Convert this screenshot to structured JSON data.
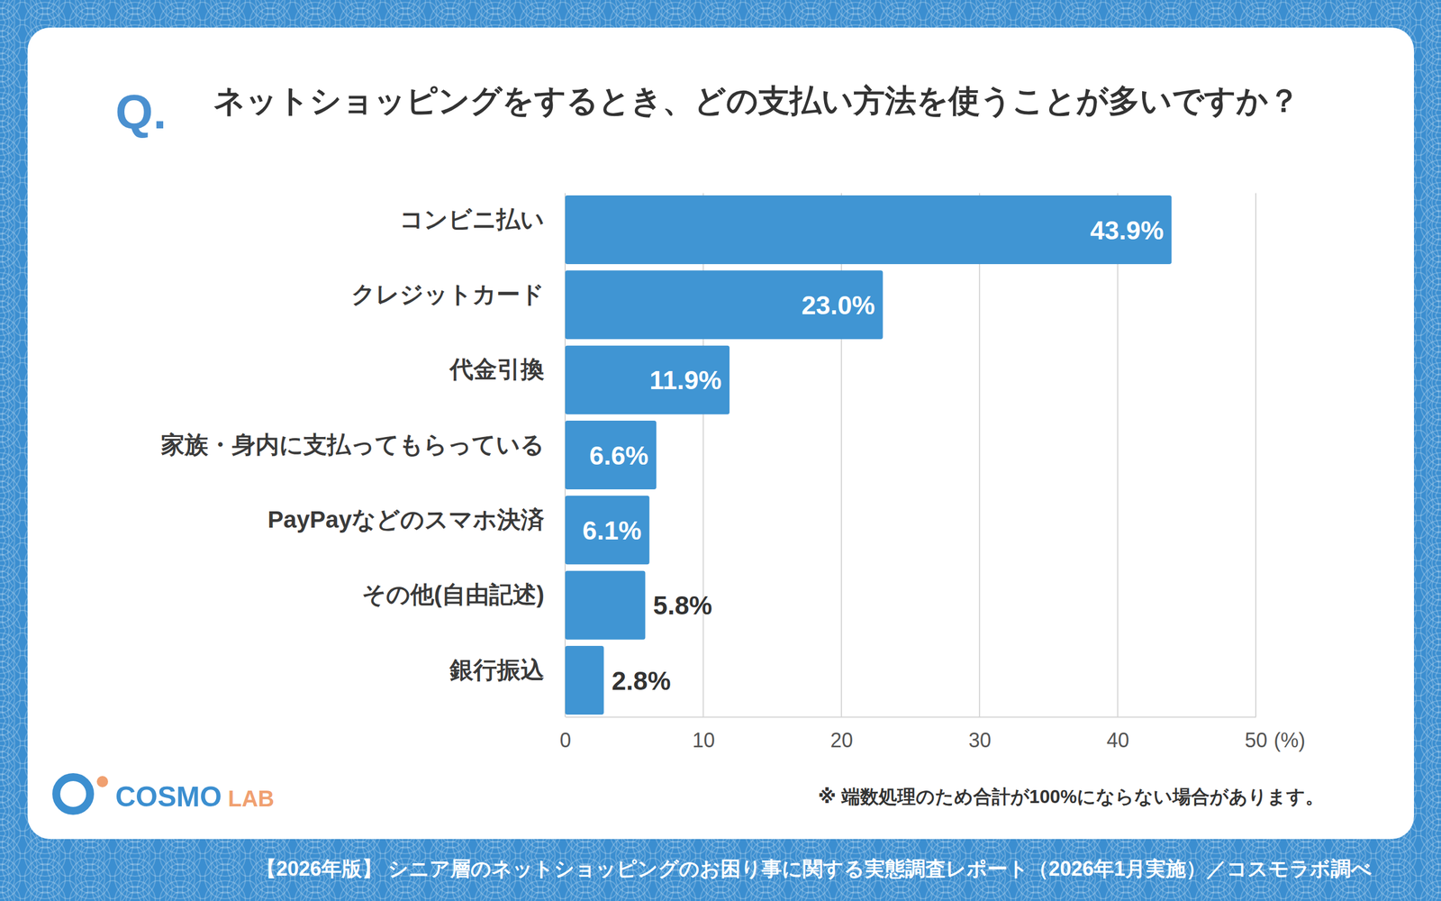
{
  "chart_data": {
    "type": "bar",
    "orientation": "horizontal",
    "title": "ネットショッピングをするとき、どの支払い方法を使うことが多いですか？",
    "categories": [
      "コンビニ払い",
      "クレジットカード",
      "代金引換",
      "家族・身内に支払ってもらっている",
      "PayPayなどのスマホ決済",
      "その他(自由記述)",
      "銀行振込"
    ],
    "values": [
      43.9,
      23.0,
      11.9,
      6.6,
      6.1,
      5.8,
      2.8
    ],
    "value_labels": [
      "43.9%",
      "23.0%",
      "11.9%",
      "6.6%",
      "6.1%",
      "5.8%",
      "2.8%"
    ],
    "data_labels": true,
    "color": "#4095d3",
    "xlim": [
      0,
      50
    ],
    "xticks": [
      0,
      10,
      20,
      30,
      40,
      50
    ],
    "xlabel": "(%)",
    "grid": true,
    "annotations": [
      "Q.",
      "※ 端数処理のため合計が100%にならない場合があります。",
      "【2026年版】 シニア層のネットショッピングのお困り事に関する実態調査レポート（2026年1月実施）／コスモラボ調べ",
      "COSMO LAB"
    ]
  }
}
